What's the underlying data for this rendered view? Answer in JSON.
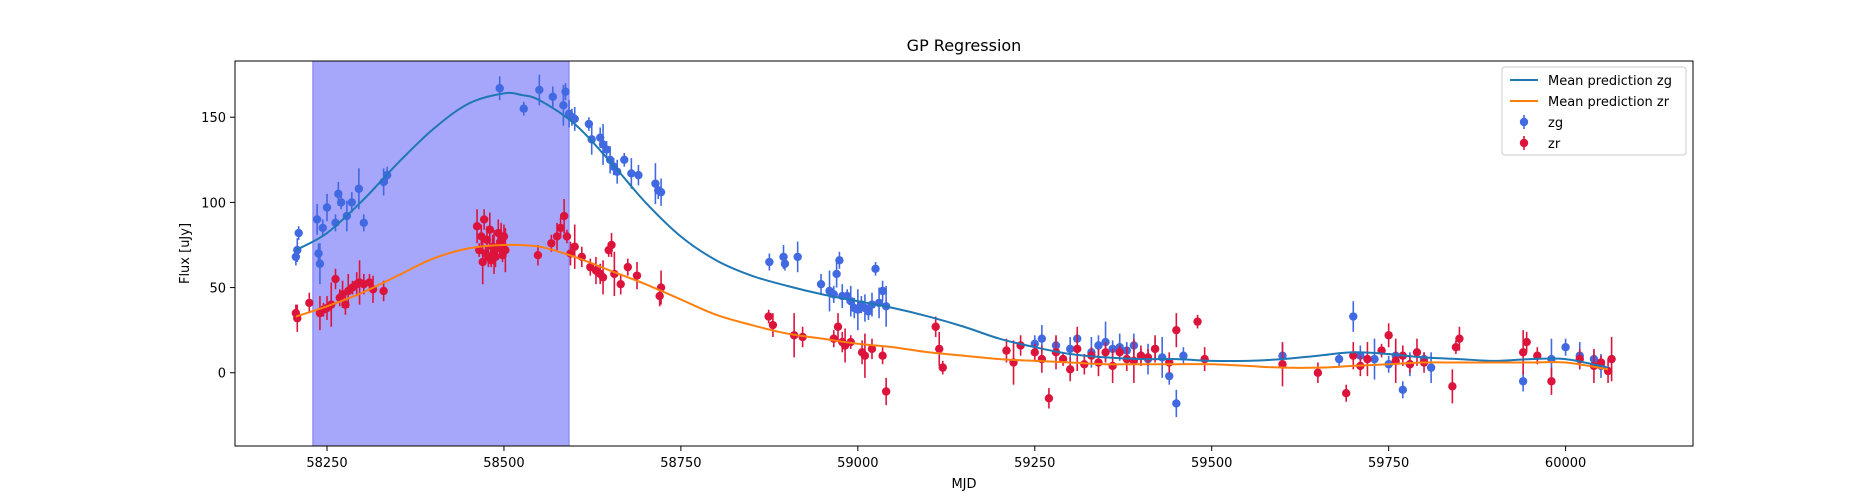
{
  "chart_data": {
    "type": "scatter",
    "title": "GP Regression",
    "xlabel": "MJD",
    "ylabel": "Flux [uJy]",
    "xlim": [
      58120,
      60180
    ],
    "ylim": [
      -43,
      183
    ],
    "xticks": [
      58250,
      58500,
      58750,
      59000,
      59250,
      59500,
      59750,
      60000
    ],
    "yticks": [
      0,
      50,
      100,
      150
    ],
    "grid": false,
    "legend_position": "top-right",
    "highlight_region": {
      "x_start": 58230,
      "x_end": 58592,
      "color": "#a6a6fb"
    },
    "series": [
      {
        "name": "Mean prediction zg",
        "kind": "line",
        "color": "#1f77b4",
        "x": [
          58206,
          58250,
          58300,
          58350,
          58400,
          58450,
          58500,
          58525,
          58550,
          58600,
          58650,
          58700,
          58750,
          58800,
          58850,
          58900,
          58950,
          59000,
          59050,
          59100,
          59150,
          59200,
          59250,
          59300,
          59350,
          59400,
          59450,
          59500,
          59550,
          59600,
          59650,
          59700,
          59750,
          59800,
          59850,
          59900,
          59950,
          60000,
          60060
        ],
        "y": [
          72,
          82,
          101,
          123,
          143,
          158,
          164,
          163,
          160,
          146,
          124,
          100,
          80,
          66,
          57,
          51,
          46,
          42,
          38,
          33,
          27,
          20,
          15,
          11,
          9,
          8,
          8,
          7,
          7,
          8,
          10,
          12,
          11,
          9,
          8,
          7,
          8,
          8,
          3
        ]
      },
      {
        "name": "Mean prediction zr",
        "kind": "line",
        "color": "#ff7f0e",
        "x": [
          58206,
          58250,
          58300,
          58350,
          58400,
          58450,
          58500,
          58550,
          58600,
          58650,
          58700,
          58750,
          58800,
          58850,
          58900,
          58950,
          59000,
          59050,
          59100,
          59150,
          59200,
          59250,
          59300,
          59350,
          59400,
          59450,
          59500,
          59550,
          59600,
          59650,
          59700,
          59750,
          59800,
          59850,
          59900,
          59950,
          60000,
          60060
        ],
        "y": [
          33,
          39,
          47,
          57,
          67,
          73,
          75,
          74,
          68,
          60,
          52,
          43,
          34,
          28,
          23,
          20,
          17,
          15,
          12,
          10,
          8,
          7,
          6,
          5,
          5,
          5,
          5,
          4,
          3,
          3,
          4,
          5,
          6,
          6,
          6,
          6,
          6,
          2
        ]
      },
      {
        "name": "zg",
        "kind": "errorbar",
        "color": "#4169e1",
        "x": [
          58206,
          58208,
          58210,
          58236,
          58238,
          58240,
          58244,
          58250,
          58262,
          58266,
          58270,
          58278,
          58285,
          58295,
          58302,
          58330,
          58335,
          58494,
          58528,
          58550,
          58569,
          58584,
          58587,
          58592,
          58596,
          58600,
          58620,
          58624,
          58636,
          58640,
          58645,
          58650,
          58655,
          58660,
          58670,
          58680,
          58690,
          58714,
          58718,
          58722,
          58875,
          58895,
          58897,
          58915,
          58948,
          58960,
          58966,
          58970,
          58974,
          58978,
          58985,
          58990,
          58995,
          59000,
          59005,
          59010,
          59015,
          59020,
          59025,
          59030,
          59035,
          59040,
          59250,
          59260,
          59280,
          59300,
          59310,
          59330,
          59340,
          59350,
          59360,
          59370,
          59380,
          59390,
          59400,
          59410,
          59420,
          59430,
          59440,
          59450,
          59460,
          59600,
          59680,
          59700,
          59710,
          59730,
          59750,
          59760,
          59770,
          59780,
          59800,
          59810,
          59940,
          59980,
          60000,
          60020,
          60040,
          60050
        ],
        "y": [
          68,
          72,
          82,
          90,
          70,
          64,
          85,
          97,
          88,
          105,
          100,
          92,
          100,
          108,
          88,
          112,
          116,
          167,
          155,
          166,
          162,
          157,
          165,
          152,
          150,
          149,
          146,
          137,
          138,
          134,
          131,
          125,
          121,
          118,
          125,
          117,
          116,
          111,
          107,
          106,
          65,
          68,
          64,
          68,
          52,
          48,
          46,
          58,
          66,
          45,
          45,
          42,
          38,
          37,
          40,
          38,
          36,
          40,
          61,
          41,
          48,
          39,
          17,
          20,
          16,
          14,
          20,
          12,
          16,
          18,
          14,
          15,
          13,
          16,
          10,
          8,
          14,
          9,
          -2,
          -18,
          10,
          10,
          8,
          33,
          10,
          8,
          5,
          10,
          -10,
          5,
          8,
          3,
          -5,
          8,
          15,
          10,
          8,
          4
        ]
      },
      {
        "name": "zr",
        "kind": "errorbar",
        "color": "#dc143c",
        "x": [
          58206,
          58208,
          58225,
          58240,
          58245,
          58250,
          58256,
          58262,
          58268,
          58272,
          58276,
          58280,
          58286,
          58292,
          58296,
          58302,
          58310,
          58315,
          58330,
          58462,
          58465,
          58468,
          58470,
          58472,
          58474,
          58476,
          58478,
          58480,
          58482,
          58484,
          58486,
          58488,
          58490,
          58492,
          58494,
          58496,
          58498,
          58500,
          58502,
          58548,
          58567,
          58575,
          58580,
          58585,
          58589,
          58594,
          58600,
          58610,
          58622,
          58630,
          58636,
          58640,
          58648,
          58652,
          58656,
          58665,
          58675,
          58688,
          58720,
          58722,
          58874,
          58880,
          58910,
          58922,
          58966,
          58972,
          58978,
          58982,
          58990,
          59006,
          59010,
          59020,
          59035,
          59040,
          59110,
          59115,
          59120,
          59210,
          59220,
          59230,
          59250,
          59260,
          59270,
          59280,
          59290,
          59300,
          59310,
          59320,
          59330,
          59340,
          59350,
          59360,
          59370,
          59380,
          59390,
          59400,
          59410,
          59420,
          59440,
          59450,
          59480,
          59490,
          59600,
          59650,
          59690,
          59700,
          59710,
          59720,
          59740,
          59750,
          59760,
          59770,
          59780,
          59790,
          59800,
          59840,
          59845,
          59850,
          59940,
          59945,
          59960,
          59980,
          60020,
          60040,
          60050,
          60060,
          60065
        ],
        "y": [
          35,
          32,
          41,
          35,
          37,
          38,
          40,
          55,
          44,
          46,
          40,
          48,
          50,
          52,
          53,
          52,
          53,
          49,
          48,
          86,
          72,
          80,
          65,
          90,
          70,
          78,
          68,
          84,
          66,
          74,
          71,
          68,
          73,
          82,
          75,
          78,
          69,
          80,
          72,
          69,
          76,
          80,
          85,
          92,
          80,
          70,
          74,
          68,
          62,
          60,
          58,
          56,
          72,
          75,
          58,
          52,
          62,
          57,
          45,
          50,
          33,
          28,
          22,
          21,
          20,
          27,
          18,
          16,
          18,
          12,
          10,
          14,
          10,
          -11,
          27,
          14,
          3,
          13,
          6,
          16,
          12,
          8,
          -15,
          12,
          8,
          2,
          14,
          5,
          10,
          6,
          12,
          4,
          12,
          8,
          7,
          10,
          9,
          14,
          6,
          25,
          30,
          8,
          5,
          0,
          -12,
          10,
          4,
          8,
          13,
          22,
          7,
          10,
          5,
          12,
          6,
          -8,
          15,
          20,
          12,
          18,
          10,
          -5,
          8,
          4,
          6,
          1,
          8
        ]
      }
    ]
  }
}
